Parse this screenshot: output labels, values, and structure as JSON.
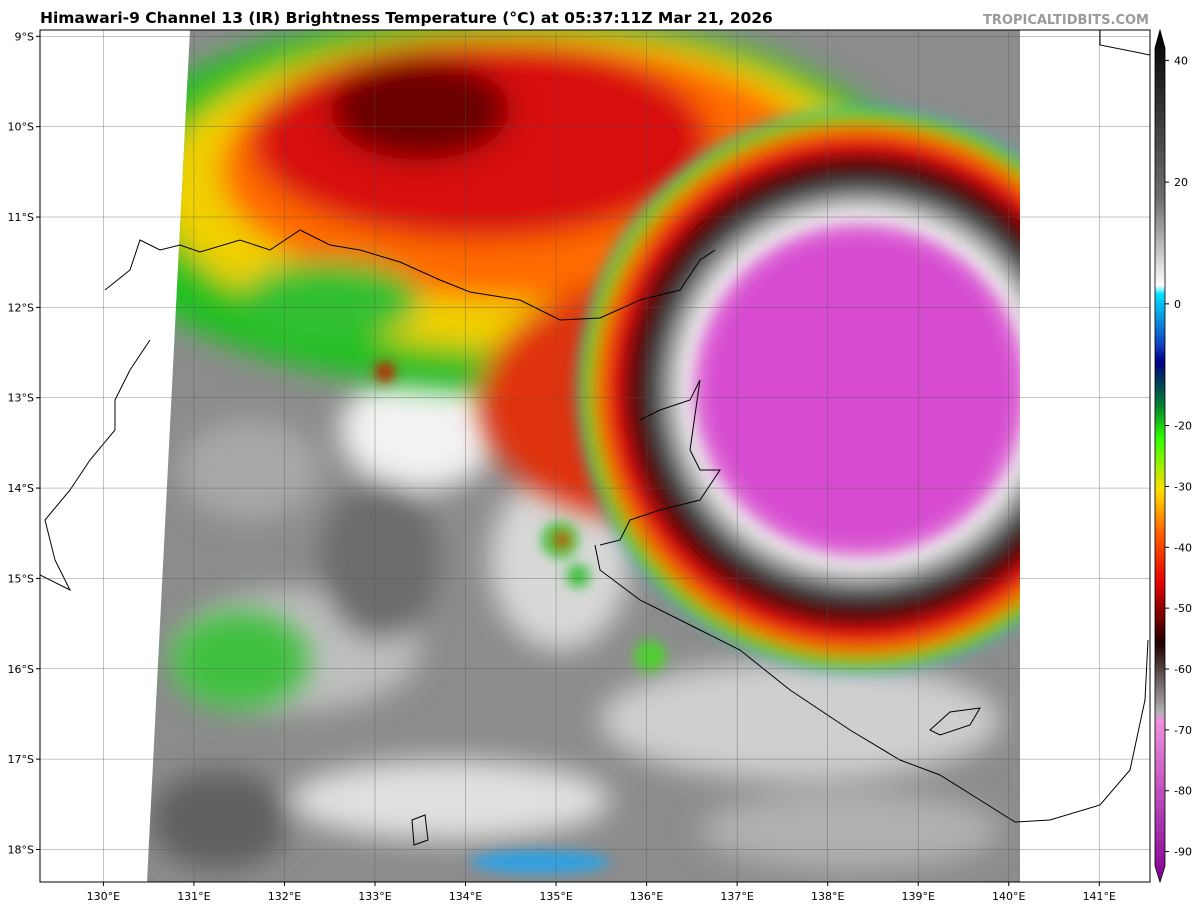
{
  "header": {
    "title": "Himawari-9 Channel 13 (IR) Brightness Temperature (°C) at 05:37:11Z Mar 21, 2026",
    "credit": "TROPICALTIDBITS.COM"
  },
  "map": {
    "lonlim": [
      129.3,
      141.56
    ],
    "latlim": [
      -8.93,
      -18.36
    ],
    "lat_ticks": [
      {
        "value": -9,
        "label": "9°S"
      },
      {
        "value": -10,
        "label": "10°S"
      },
      {
        "value": -11,
        "label": "11°S"
      },
      {
        "value": -12,
        "label": "12°S"
      },
      {
        "value": -13,
        "label": "13°S"
      },
      {
        "value": -14,
        "label": "14°S"
      },
      {
        "value": -15,
        "label": "15°S"
      },
      {
        "value": -16,
        "label": "16°S"
      },
      {
        "value": -17,
        "label": "17°S"
      },
      {
        "value": -18,
        "label": "18°S"
      }
    ],
    "lon_ticks": [
      {
        "value": 130,
        "label": "130°E"
      },
      {
        "value": 131,
        "label": "131°E"
      },
      {
        "value": 132,
        "label": "132°E"
      },
      {
        "value": 133,
        "label": "133°E"
      },
      {
        "value": 134,
        "label": "134°E"
      },
      {
        "value": 135,
        "label": "135°E"
      },
      {
        "value": 136,
        "label": "136°E"
      },
      {
        "value": 137,
        "label": "137°E"
      },
      {
        "value": 138,
        "label": "138°E"
      },
      {
        "value": 139,
        "label": "139°E"
      },
      {
        "value": 140,
        "label": "140°E"
      },
      {
        "value": 141,
        "label": "141°E"
      }
    ]
  },
  "colorbar": {
    "range": [
      -95,
      45
    ],
    "ticks": [
      40,
      20,
      0,
      -20,
      -30,
      -40,
      -50,
      -60,
      -70,
      -80,
      -90
    ]
  }
}
